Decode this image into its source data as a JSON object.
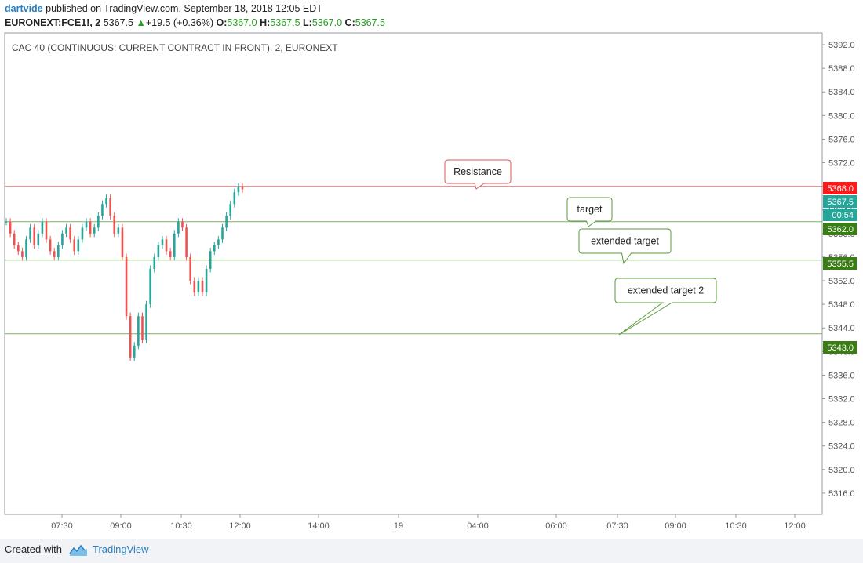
{
  "header": {
    "author": "dartvide",
    "published_text": "published on TradingView.com, September 18, 2018 12:05 EDT",
    "symbol": "EURONEXT:FCE1!, 2",
    "last": "5367.5",
    "change": "+19.5 (+0.36%)",
    "o_label": "O:",
    "o_val": "5367.0",
    "h_label": "H:",
    "h_val": "5367.5",
    "l_label": "L:",
    "l_val": "5367.0",
    "c_label": "C:",
    "c_val": "5367.5"
  },
  "footer": {
    "created_with": "Created with",
    "brand": "TradingView"
  },
  "colors": {
    "up": "#26a69a",
    "down": "#ef5350",
    "resistance": "#f08080",
    "target": "#7fb069",
    "label_green": "#3a7d14",
    "label_red": "#ff1a1a",
    "label_teal": "#26a69a"
  },
  "chart_data": {
    "type": "candlestick",
    "title": "CAC 40 (CONTINUOUS: CURRENT CONTRACT IN FRONT), 2, EURONEXT",
    "ylim": [
      5312.4,
      5394.0
    ],
    "y_ticks": [
      5392.0,
      5388.0,
      5384.0,
      5380.0,
      5376.0,
      5372.0,
      5368.0,
      5364.0,
      5360.0,
      5356.0,
      5352.0,
      5348.0,
      5344.0,
      5340.0,
      5336.0,
      5332.0,
      5328.0,
      5324.0,
      5320.0,
      5316.0
    ],
    "x_ticks": [
      "07:30",
      "09:00",
      "10:30",
      "12:00",
      "14:00",
      "19",
      "04:00",
      "06:00",
      "07:30",
      "09:00",
      "10:30",
      "12:00"
    ],
    "grid": false,
    "price_path": [
      5362,
      5360,
      5358,
      5357,
      5356,
      5359,
      5361,
      5358,
      5360,
      5362,
      5359,
      5357,
      5356,
      5358,
      5360,
      5361,
      5359,
      5357,
      5359,
      5361,
      5362,
      5360,
      5361,
      5363,
      5365,
      5366,
      5363,
      5360,
      5361,
      5356,
      5346,
      5339,
      5341,
      5346,
      5342,
      5348,
      5354,
      5356,
      5358,
      5359,
      5357,
      5356,
      5360,
      5362,
      5361,
      5356,
      5352,
      5350,
      5352,
      5350,
      5354,
      5357,
      5358,
      5359,
      5361,
      5363,
      5365,
      5367,
      5368,
      5367.5
    ],
    "horizontal_lines": [
      {
        "name": "Resistance",
        "price": 5368.0,
        "callout": "Resistance"
      },
      {
        "name": "target",
        "price": 5362.0,
        "callout": "target"
      },
      {
        "name": "extended target",
        "price": 5355.5,
        "callout": "extended target"
      },
      {
        "name": "extended target 2",
        "price": 5343.0,
        "callout": "extended target 2"
      }
    ],
    "price_labels": [
      {
        "text": "5368.0",
        "kind": "red"
      },
      {
        "text": "5367.5",
        "kind": "teal"
      },
      {
        "text": "00:54",
        "kind": "teal"
      },
      {
        "text": "5362.0",
        "kind": "green"
      },
      {
        "text": "5355.5",
        "kind": "green"
      },
      {
        "text": "5343.0",
        "kind": "green"
      }
    ]
  }
}
